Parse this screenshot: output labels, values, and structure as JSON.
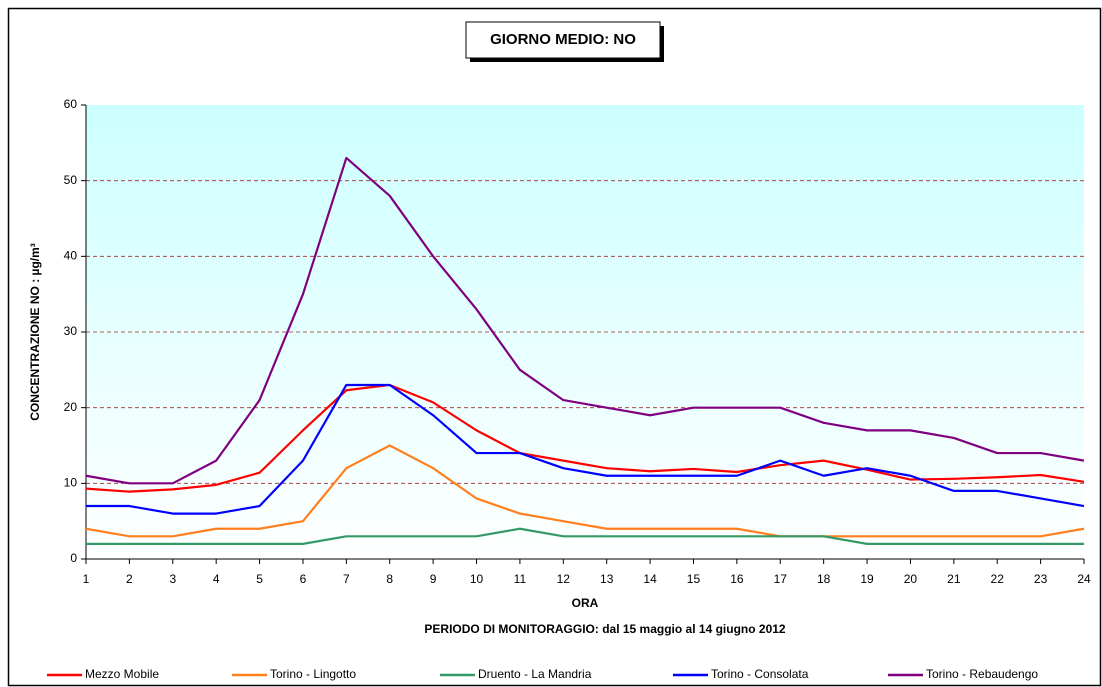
{
  "chart_data": {
    "type": "line",
    "title": "GIORNO MEDIO: NO",
    "y_label": "CONCENTRAZIONE NO :  µg/m³",
    "x_label": "ORA",
    "subtitle": "PERIODO DI MONITORAGGIO: dal 15 maggio al 14 giugno 2012",
    "x": [
      1,
      2,
      3,
      4,
      5,
      6,
      7,
      8,
      9,
      10,
      11,
      12,
      13,
      14,
      15,
      16,
      17,
      18,
      19,
      20,
      21,
      22,
      23,
      24
    ],
    "xlim": [
      1,
      24
    ],
    "xticks": [
      1,
      2,
      3,
      4,
      5,
      6,
      7,
      8,
      9,
      10,
      11,
      12,
      13,
      14,
      15,
      16,
      17,
      18,
      19,
      20,
      21,
      22,
      23,
      24
    ],
    "ylim": [
      0,
      60
    ],
    "yticks": [
      0,
      10,
      20,
      30,
      40,
      50,
      60
    ],
    "grid": true,
    "legend": "bottom",
    "series": [
      {
        "name": "Mezzo Mobile",
        "color": "#ff0000",
        "values": [
          9.3,
          8.9,
          9.2,
          9.8,
          11.4,
          17,
          22.3,
          23,
          20.7,
          17,
          14,
          13,
          12,
          11.6,
          11.9,
          11.5,
          12.4,
          13,
          11.8,
          10.5,
          10.6,
          10.8,
          11.1,
          10.2
        ]
      },
      {
        "name": "Torino - Lingotto",
        "color": "#ff7f1e",
        "values": [
          4,
          3,
          3,
          4,
          4,
          5,
          12,
          15,
          12,
          8,
          6,
          5,
          4,
          4,
          4,
          4,
          3,
          3,
          3,
          3,
          3,
          3,
          3,
          4
        ]
      },
      {
        "name": "Druento - La Mandria",
        "color": "#339966",
        "values": [
          2,
          2,
          2,
          2,
          2,
          2,
          3,
          3,
          3,
          3,
          4,
          3,
          3,
          3,
          3,
          3,
          3,
          3,
          2,
          2,
          2,
          2,
          2,
          2
        ]
      },
      {
        "name": "Torino - Consolata",
        "color": "#0000ff",
        "values": [
          7,
          7,
          6,
          6,
          7,
          13,
          23,
          23,
          19,
          14,
          14,
          12,
          11,
          11,
          11,
          11,
          13,
          11,
          12,
          11,
          9,
          9,
          8,
          7
        ]
      },
      {
        "name": "Torino - Rebaudengo",
        "color": "#800080",
        "values": [
          11,
          10,
          10,
          13,
          21,
          35,
          53,
          48,
          40,
          33,
          25,
          21,
          20,
          19,
          20,
          20,
          20,
          18,
          17,
          17,
          16,
          14,
          14,
          13
        ]
      }
    ]
  }
}
